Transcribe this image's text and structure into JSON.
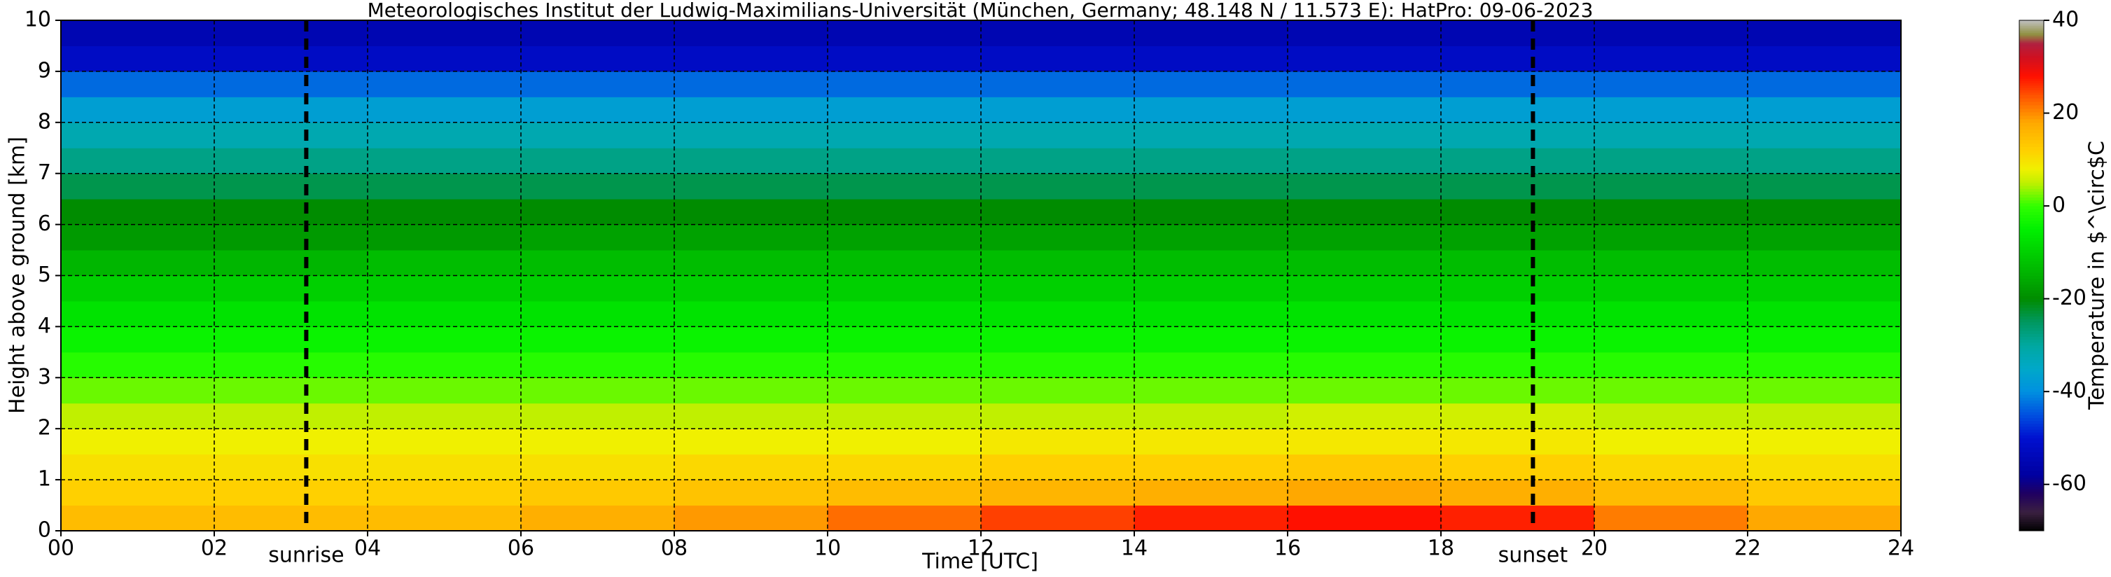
{
  "chart_data": {
    "type": "heatmap",
    "title": "Meteorologisches Institut der Ludwig-Maximilians-Universität (München, Germany; 48.148 N / 11.573 E):    HatPro: 09-06-2023",
    "x_label": "Time [UTC]",
    "y_label": "Height above ground [km]",
    "colorbar_label": "Temperature in $^\\circ$C",
    "xbins": [
      0,
      2,
      4,
      6,
      8,
      10,
      12,
      14,
      16,
      18,
      20,
      22,
      24
    ],
    "ybins": [
      0,
      0.5,
      1,
      1.5,
      2,
      2.5,
      3,
      3.5,
      4,
      4.5,
      5,
      5.5,
      6,
      6.5,
      7,
      7.5,
      8,
      8.5,
      9,
      9.5,
      10
    ],
    "values": [
      [
        15,
        15,
        15,
        17,
        19,
        22,
        25,
        27,
        28,
        27,
        21,
        18
      ],
      [
        12,
        12,
        12,
        13,
        14,
        15,
        16,
        17,
        18,
        17,
        15,
        13
      ],
      [
        10,
        10,
        10,
        10,
        11,
        11,
        12,
        12,
        13,
        12,
        11,
        10
      ],
      [
        8,
        8,
        8,
        8,
        8,
        8,
        9,
        9,
        9,
        9,
        8,
        8
      ],
      [
        5,
        5,
        5,
        5,
        5,
        5,
        5,
        5,
        6,
        6,
        5,
        5
      ],
      [
        2,
        2,
        2,
        2,
        2,
        2,
        2,
        2,
        2,
        2,
        2,
        2
      ],
      [
        -1,
        -1,
        -1,
        -1,
        -1,
        -1,
        -1,
        -1,
        -1,
        -1,
        -1,
        -1
      ],
      [
        -4,
        -4,
        -4,
        -4,
        -4,
        -4,
        -4,
        -4,
        -4,
        -4,
        -4,
        -4
      ],
      [
        -7,
        -7,
        -7,
        -7,
        -7,
        -7,
        -7,
        -7,
        -7,
        -7,
        -7,
        -7
      ],
      [
        -10,
        -10,
        -10,
        -10,
        -10,
        -10,
        -10,
        -10,
        -10,
        -10,
        -10,
        -10
      ],
      [
        -14,
        -14,
        -13,
        -13,
        -13,
        -13,
        -13,
        -13,
        -13,
        -13,
        -13,
        -13
      ],
      [
        -18,
        -18,
        -18,
        -17,
        -17,
        -17,
        -17,
        -17,
        -17,
        -17,
        -17,
        -17
      ],
      [
        -20,
        -20,
        -20,
        -20,
        -20,
        -20,
        -20,
        -20,
        -20,
        -20,
        -20,
        -20
      ],
      [
        -24,
        -24,
        -24,
        -24,
        -24,
        -24,
        -24,
        -24,
        -24,
        -24,
        -24,
        -24
      ],
      [
        -28,
        -28,
        -28,
        -28,
        -28,
        -28,
        -28,
        -28,
        -28,
        -28,
        -28,
        -28
      ],
      [
        -32,
        -32,
        -32,
        -32,
        -32,
        -32,
        -32,
        -32,
        -32,
        -32,
        -32,
        -32
      ],
      [
        -37,
        -37,
        -37,
        -37,
        -37,
        -37,
        -37,
        -37,
        -37,
        -37,
        -37,
        -37
      ],
      [
        -43,
        -43,
        -43,
        -43,
        -43,
        -43,
        -43,
        -43,
        -43,
        -43,
        -43,
        -43
      ],
      [
        -52,
        -52,
        -52,
        -52,
        -52,
        -52,
        -52,
        -52,
        -52,
        -52,
        -52,
        -52
      ],
      [
        -55,
        -55,
        -55,
        -55,
        -55,
        -55,
        -55,
        -55,
        -55,
        -55,
        -55,
        -55
      ]
    ],
    "xlim": [
      0,
      24
    ],
    "xticks": [
      {
        "value": 0,
        "label": "00"
      },
      {
        "value": 2,
        "label": "02"
      },
      {
        "value": 4,
        "label": "04"
      },
      {
        "value": 6,
        "label": "06"
      },
      {
        "value": 8,
        "label": "08"
      },
      10,
      12,
      14,
      16,
      18,
      20,
      22,
      24
    ],
    "ylim": [
      0,
      10
    ],
    "yticks": [
      0,
      1,
      2,
      3,
      4,
      5,
      6,
      7,
      8,
      9,
      10
    ],
    "clim": [
      -70,
      40
    ],
    "cticks": [
      -60,
      -40,
      -20,
      0,
      20,
      40
    ],
    "grid": true,
    "annotations": [
      {
        "text": "sunrise",
        "x": 3.2
      },
      {
        "text": "sunset",
        "x": 19.2
      }
    ],
    "colorscale": [
      {
        "value": -70,
        "color": "#000000"
      },
      {
        "value": -66,
        "color": "#3a2040"
      },
      {
        "value": -62,
        "color": "#200060"
      },
      {
        "value": -58,
        "color": "#0000a0"
      },
      {
        "value": -50,
        "color": "#0010d0"
      },
      {
        "value": -45,
        "color": "#0050e0"
      },
      {
        "value": -40,
        "color": "#0090e0"
      },
      {
        "value": -35,
        "color": "#00a8c8"
      },
      {
        "value": -30,
        "color": "#00a8a0"
      },
      {
        "value": -25,
        "color": "#009860"
      },
      {
        "value": -20,
        "color": "#008c00"
      },
      {
        "value": -15,
        "color": "#00b000"
      },
      {
        "value": -10,
        "color": "#00d000"
      },
      {
        "value": -5,
        "color": "#00f000"
      },
      {
        "value": 0,
        "color": "#30ff00"
      },
      {
        "value": 5,
        "color": "#c0f000"
      },
      {
        "value": 8,
        "color": "#f0f000"
      },
      {
        "value": 12,
        "color": "#ffd000"
      },
      {
        "value": 18,
        "color": "#ffa800"
      },
      {
        "value": 24,
        "color": "#ff5000"
      },
      {
        "value": 28,
        "color": "#ff1000"
      },
      {
        "value": 32,
        "color": "#d01020"
      },
      {
        "value": 35,
        "color": "#b02040"
      },
      {
        "value": 37,
        "color": "#909040"
      },
      {
        "value": 40,
        "color": "#c0c0c0"
      }
    ]
  }
}
